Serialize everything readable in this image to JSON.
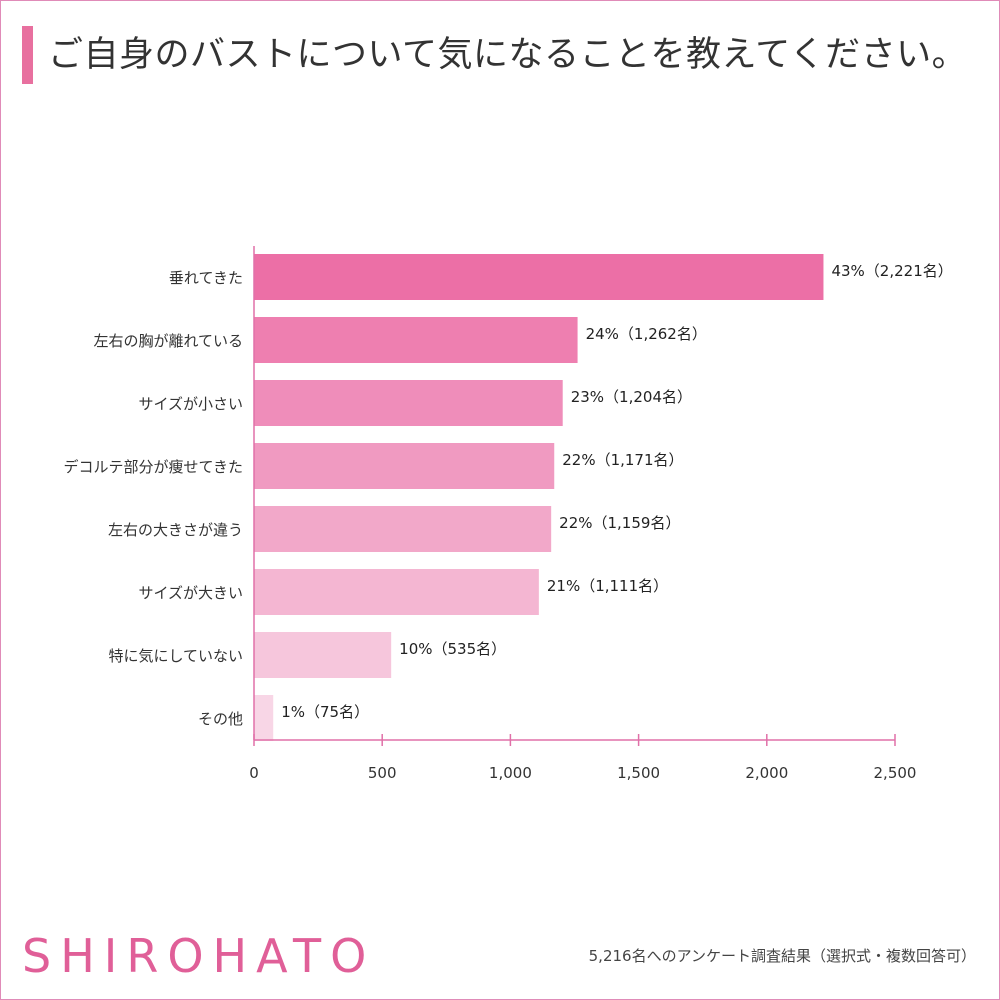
{
  "title": "ご自身のバストについて気になることを教えてください。",
  "brand": "SHIROHATO",
  "footnote": "5,216名へのアンケート調査結果（選択式・複数回答可）",
  "colors": {
    "border": "#e08bb8",
    "accent": "#e8709f",
    "axis": "#e070a8",
    "brand": "#e05f98"
  },
  "chart_data": {
    "type": "bar",
    "orientation": "horizontal",
    "categories": [
      "垂れてきた",
      "左右の胸が離れている",
      "サイズが小さい",
      "デコルテ部分が痩せてきた",
      "左右の大きさが違う",
      "サイズが大きい",
      "特に気にしていない",
      "その他"
    ],
    "values": [
      2221,
      1262,
      1204,
      1171,
      1159,
      1111,
      535,
      75
    ],
    "value_labels": [
      "43%（2,221名）",
      "24%（1,262名）",
      "23%（1,204名）",
      "22%（1,171名）",
      "22%（1,159名）",
      "21%（1,111名）",
      "10%（535名）",
      "1%（75名）"
    ],
    "bar_colors": [
      "#ec6fa6",
      "#ee7fb0",
      "#ef8dba",
      "#f09ac1",
      "#f2a8c9",
      "#f4b6d2",
      "#f6c6dc",
      "#f8d6e6"
    ],
    "xlim": [
      0,
      2500
    ],
    "xticks": [
      0,
      500,
      1000,
      1500,
      2000,
      2500
    ],
    "xtick_labels": [
      "0",
      "500",
      "1,000",
      "1,500",
      "2,000",
      "2,500"
    ],
    "grid": false
  }
}
